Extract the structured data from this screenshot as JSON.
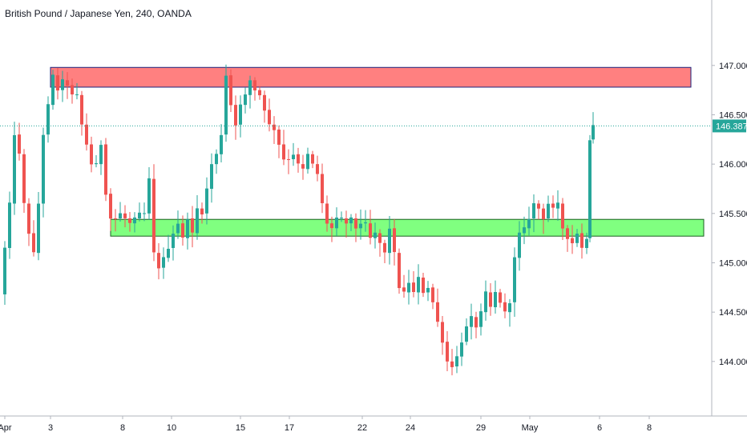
{
  "colors": {
    "up": "#26a69a",
    "down": "#ef5350",
    "resistance_fill": "#ff8080",
    "resistance_stroke": "#1a237e",
    "support_fill": "#80ff80",
    "support_stroke": "#1b5e20",
    "price_line": "#26a69a",
    "axis_text": "#131722",
    "grid": "#e0e3eb"
  },
  "chart_data": {
    "type": "candlestick",
    "title": "British Pound / Japanese Yen, 240, OANDA",
    "ylim": [
      143.65,
      147.42
    ],
    "xlim": [
      0,
      880
    ],
    "y_ticks": [
      "147.000",
      "146.500",
      "146.000",
      "145.500",
      "145.000",
      "144.500",
      "144.000"
    ],
    "y_tick_values": [
      147.0,
      146.5,
      146.0,
      145.5,
      145.0,
      144.5,
      144.0
    ],
    "x_ticks": [
      {
        "label": "Apr",
        "x": 6
      },
      {
        "label": "3",
        "x": 63
      },
      {
        "label": "8",
        "x": 153
      },
      {
        "label": "10",
        "x": 214
      },
      {
        "label": "15",
        "x": 300
      },
      {
        "label": "17",
        "x": 361
      },
      {
        "label": "22",
        "x": 452
      },
      {
        "label": "24",
        "x": 512
      },
      {
        "label": "29",
        "x": 600
      },
      {
        "label": "May",
        "x": 661
      },
      {
        "label": "6",
        "x": 748
      },
      {
        "label": "8",
        "x": 810
      }
    ],
    "last_price": "146.387",
    "last_price_value": 146.387,
    "zones": [
      {
        "name": "resistance",
        "x_start": 63,
        "x_end": 862,
        "high": 146.98,
        "low": 146.78
      },
      {
        "name": "support",
        "x_start": 138,
        "x_end": 878,
        "high": 145.44,
        "low": 145.27
      }
    ],
    "anchors": [
      [
        0,
        144.68
      ],
      [
        6,
        145.15
      ],
      [
        12,
        145.6
      ],
      [
        18,
        146.3
      ],
      [
        24,
        146.1
      ],
      [
        30,
        145.6
      ],
      [
        36,
        145.3
      ],
      [
        42,
        145.1
      ],
      [
        48,
        145.6
      ],
      [
        54,
        146.3
      ],
      [
        60,
        146.6
      ],
      [
        66,
        146.9
      ],
      [
        72,
        146.75
      ],
      [
        78,
        146.85
      ],
      [
        84,
        146.8
      ],
      [
        90,
        146.7
      ],
      [
        96,
        146.7
      ],
      [
        102,
        146.4
      ],
      [
        108,
        146.2
      ],
      [
        114,
        146.0
      ],
      [
        120,
        146.0
      ],
      [
        126,
        146.2
      ],
      [
        132,
        145.7
      ],
      [
        138,
        145.45
      ],
      [
        144,
        145.45
      ],
      [
        150,
        145.5
      ],
      [
        156,
        145.45
      ],
      [
        162,
        145.4
      ],
      [
        168,
        145.45
      ],
      [
        174,
        145.5
      ],
      [
        180,
        145.5
      ],
      [
        186,
        145.85
      ],
      [
        192,
        145.1
      ],
      [
        198,
        144.95
      ],
      [
        204,
        145.05
      ],
      [
        210,
        145.15
      ],
      [
        216,
        145.3
      ],
      [
        222,
        145.4
      ],
      [
        228,
        145.25
      ],
      [
        234,
        145.45
      ],
      [
        240,
        145.3
      ],
      [
        246,
        145.55
      ],
      [
        252,
        145.5
      ],
      [
        258,
        145.75
      ],
      [
        264,
        146.0
      ],
      [
        270,
        146.1
      ],
      [
        276,
        146.3
      ],
      [
        282,
        146.9
      ],
      [
        288,
        146.6
      ],
      [
        294,
        146.4
      ],
      [
        300,
        146.6
      ],
      [
        306,
        146.7
      ],
      [
        312,
        146.85
      ],
      [
        318,
        146.75
      ],
      [
        324,
        146.7
      ],
      [
        330,
        146.55
      ],
      [
        336,
        146.4
      ],
      [
        342,
        146.35
      ],
      [
        348,
        146.2
      ],
      [
        354,
        146.05
      ],
      [
        360,
        146.05
      ],
      [
        366,
        146.1
      ],
      [
        372,
        146.0
      ],
      [
        378,
        145.95
      ],
      [
        384,
        146.1
      ],
      [
        390,
        146.0
      ],
      [
        396,
        145.9
      ],
      [
        402,
        145.6
      ],
      [
        408,
        145.4
      ],
      [
        414,
        145.35
      ],
      [
        420,
        145.45
      ],
      [
        426,
        145.45
      ],
      [
        432,
        145.4
      ],
      [
        438,
        145.45
      ],
      [
        444,
        145.35
      ],
      [
        450,
        145.4
      ],
      [
        456,
        145.4
      ],
      [
        462,
        145.25
      ],
      [
        468,
        145.3
      ],
      [
        474,
        145.2
      ],
      [
        480,
        145.1
      ],
      [
        486,
        145.35
      ],
      [
        492,
        145.1
      ],
      [
        498,
        144.75
      ],
      [
        504,
        144.7
      ],
      [
        510,
        144.8
      ],
      [
        516,
        144.7
      ],
      [
        522,
        144.85
      ],
      [
        528,
        144.7
      ],
      [
        534,
        144.75
      ],
      [
        540,
        144.6
      ],
      [
        546,
        144.4
      ],
      [
        552,
        144.2
      ],
      [
        558,
        144.0
      ],
      [
        564,
        143.95
      ],
      [
        570,
        144.05
      ],
      [
        576,
        144.2
      ],
      [
        582,
        144.35
      ],
      [
        588,
        144.45
      ],
      [
        594,
        144.35
      ],
      [
        600,
        144.5
      ],
      [
        606,
        144.7
      ],
      [
        612,
        144.55
      ],
      [
        618,
        144.7
      ],
      [
        624,
        144.6
      ],
      [
        630,
        144.5
      ],
      [
        636,
        144.6
      ],
      [
        642,
        145.05
      ],
      [
        648,
        145.3
      ],
      [
        654,
        145.35
      ],
      [
        660,
        145.45
      ],
      [
        666,
        145.6
      ],
      [
        672,
        145.55
      ],
      [
        678,
        145.45
      ],
      [
        684,
        145.6
      ],
      [
        690,
        145.55
      ],
      [
        696,
        145.6
      ],
      [
        702,
        145.35
      ],
      [
        708,
        145.25
      ],
      [
        714,
        145.2
      ],
      [
        720,
        145.3
      ],
      [
        726,
        145.15
      ],
      [
        732,
        145.25
      ],
      [
        736,
        146.25
      ],
      [
        740,
        146.4
      ]
    ]
  }
}
